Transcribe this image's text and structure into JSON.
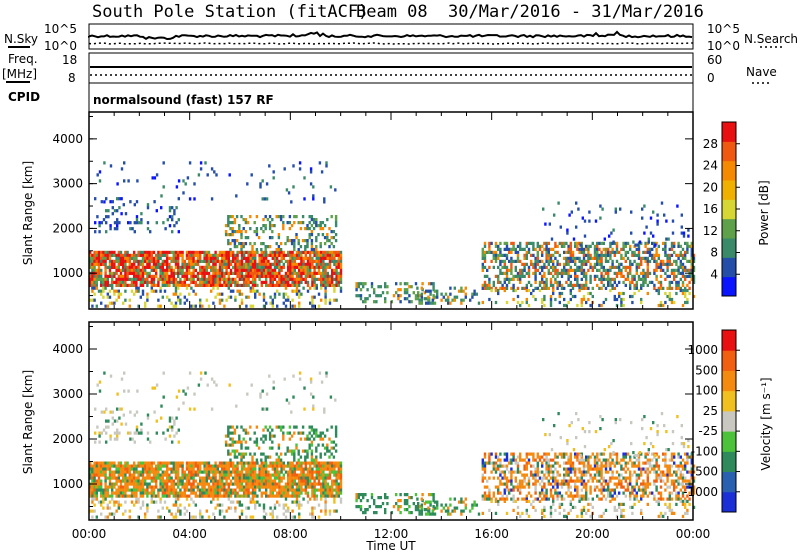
{
  "header": {
    "station": "South Pole Station (fitACF)",
    "beam": "Beam 08",
    "date_range": "30/Mar/2016 - 31/Mar/2016"
  },
  "small_panels": {
    "nsky": {
      "label": "N.Sky",
      "tick_top": "10^5",
      "tick_bottom": "10^0"
    },
    "nsearch": {
      "label": "N.Search",
      "tick_top": "10^5",
      "tick_bottom": "10^0"
    },
    "freq": {
      "label_line1": "Freq.",
      "label_line2": "[MHz]",
      "tick_top": "18",
      "tick_bottom": "8"
    },
    "nave": {
      "label": "Nave",
      "tick_top": "60",
      "tick_bottom": "0"
    },
    "cpid": {
      "label": "CPID",
      "text": "normalsound (fast) 157 RF"
    }
  },
  "chart_data": [
    {
      "type": "heatmap",
      "name": "power",
      "ylabel": "Slant Range [km]",
      "xlabel": "",
      "xlim": [
        0,
        24
      ],
      "ylim": [
        200,
        4600
      ],
      "yticks": [
        "1000",
        "2000",
        "3000",
        "4000"
      ],
      "colorbar_label": "Power [dB]",
      "colorbar_ticks": [
        "4",
        "8",
        "12",
        "16",
        "20",
        "24",
        "28"
      ],
      "colors": [
        "#0a14ff",
        "#244ea8",
        "#3a8a6a",
        "#5fa04a",
        "#d6d635",
        "#f0b000",
        "#f58a00",
        "#f05a10",
        "#e81010"
      ]
    },
    {
      "type": "heatmap",
      "name": "velocity",
      "ylabel": "Slant Range [km]",
      "xlabel": "Time UT",
      "xlim": [
        0,
        24
      ],
      "ylim": [
        200,
        4600
      ],
      "xticks": [
        "00:00",
        "04:00",
        "08:00",
        "12:00",
        "16:00",
        "20:00",
        "00:00"
      ],
      "yticks": [
        "1000",
        "2000",
        "3000",
        "4000"
      ],
      "colorbar_label": "Velocity [m s⁻¹]",
      "colorbar_ticks": [
        "1000",
        "500",
        "100",
        "25",
        "-25",
        "-100",
        "-500",
        "-1000"
      ],
      "colors": [
        "#1a2fd6",
        "#2a60b0",
        "#2e8a5a",
        "#4cc23a",
        "#c8c8c0",
        "#f0c020",
        "#f58a10",
        "#f06010",
        "#e81010"
      ]
    }
  ]
}
